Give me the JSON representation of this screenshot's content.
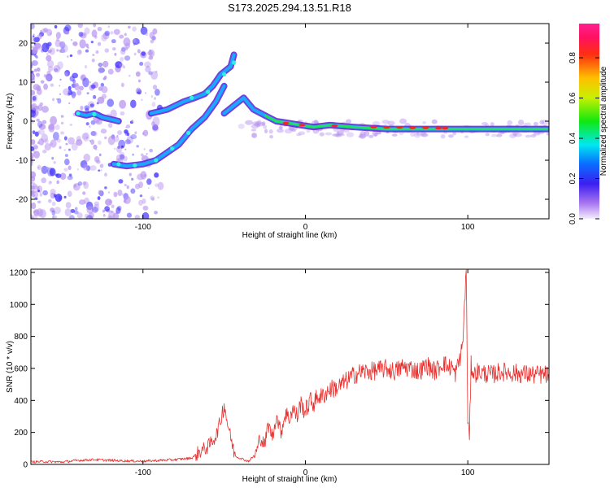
{
  "title": "S173.2025.294.13.51.R18",
  "colors": {
    "snr_line": "#e8302e",
    "axis": "#000000",
    "spectro_low": "#b894f0",
    "spectro_mid": "#4030ff",
    "spectro_high": "#ff2020"
  },
  "chart_data": [
    {
      "type": "heatmap",
      "title": "S173.2025.294.13.51.R18",
      "xlabel": "Height of straight line (km)",
      "ylabel": "Frequency (Hz)",
      "xlim": [
        -169,
        150
      ],
      "ylim": [
        -25,
        25
      ],
      "xticks": [
        -100,
        0,
        100
      ],
      "yticks": [
        -20,
        -10,
        0,
        10,
        20
      ],
      "colorbar": {
        "label": "Normalized spectral amplitude",
        "range": [
          0,
          0.97
        ],
        "ticks": [
          "0.0",
          "0.2",
          "0.4",
          "0.6",
          "0.8"
        ],
        "colormap": "gist_rainbow"
      },
      "ridges": [
        {
          "name": "",
          "x": [
            -118,
            -110,
            -100,
            -92,
            -85,
            -78,
            -70,
            -62,
            -55,
            -50
          ],
          "y": [
            -11,
            -11.5,
            -11,
            -10,
            -8,
            -6,
            -2,
            1,
            5,
            9
          ]
        },
        {
          "name": "",
          "x": [
            -140,
            -135,
            -130,
            -125,
            -120,
            -115
          ],
          "y": [
            2,
            1.5,
            2,
            1,
            0.5,
            0
          ]
        },
        {
          "name": "",
          "x": [
            -95,
            -85,
            -75,
            -68,
            -62,
            -57,
            -52,
            -46,
            -44
          ],
          "y": [
            2,
            3,
            5,
            6,
            7,
            9,
            12,
            14,
            17
          ]
        },
        {
          "name": "",
          "x": [
            -50,
            -44,
            -38,
            -32,
            -25,
            -18,
            -10,
            -3,
            5,
            15,
            30,
            50,
            70,
            90,
            110,
            130,
            149
          ],
          "y": [
            2,
            4,
            6,
            3,
            1.5,
            0,
            -0.5,
            -1,
            -1.5,
            -1,
            -1.5,
            -2,
            -2,
            -2,
            -2,
            -2,
            -2
          ]
        }
      ]
    },
    {
      "type": "line",
      "xlabel": "Height of straight line (km)",
      "ylabel": "SNR (10 * v/v)",
      "xlim": [
        -169,
        150
      ],
      "ylim": [
        0,
        1220
      ],
      "xticks": [
        -100,
        0,
        100
      ],
      "yticks": [
        0,
        200,
        400,
        600,
        800,
        1000,
        1200
      ],
      "series": [
        {
          "x": [
            -169,
            -160,
            -150,
            -140,
            -130,
            -120,
            -110,
            -100,
            -90,
            -80,
            -70,
            -65,
            -60,
            -55,
            -52,
            -50,
            -48,
            -46,
            -44,
            -42,
            -40,
            -38,
            -35,
            -32,
            -30,
            -28,
            -25,
            -23,
            -20,
            -18,
            -15,
            -12,
            -10,
            -8,
            -5,
            -3,
            0,
            3,
            5,
            8,
            10,
            15,
            20,
            25,
            30,
            35,
            40,
            45,
            50,
            55,
            60,
            65,
            70,
            75,
            80,
            85,
            88,
            90,
            92,
            94,
            96,
            97,
            98,
            99,
            100,
            101,
            102,
            104,
            106,
            110,
            115,
            120,
            130,
            140,
            150
          ],
          "y": [
            15,
            18,
            15,
            25,
            30,
            25,
            22,
            20,
            25,
            30,
            40,
            80,
            110,
            180,
            280,
            380,
            260,
            170,
            80,
            45,
            40,
            30,
            20,
            50,
            80,
            170,
            120,
            250,
            170,
            310,
            200,
            330,
            280,
            350,
            300,
            380,
            330,
            400,
            380,
            430,
            420,
            470,
            480,
            520,
            560,
            580,
            580,
            590,
            600,
            580,
            610,
            600,
            580,
            620,
            580,
            640,
            600,
            620,
            560,
            620,
            700,
            780,
            1000,
            1220,
            300,
            150,
            620,
            560,
            580,
            570,
            560,
            580,
            570,
            560,
            560
          ]
        }
      ]
    }
  ]
}
